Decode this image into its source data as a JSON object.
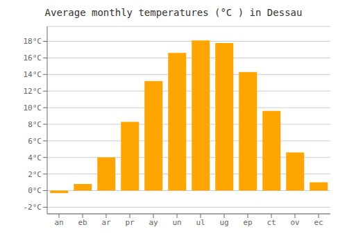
{
  "chart_data": {
    "type": "bar",
    "title": "Average monthly temperatures (°C ) in Dessau",
    "categories": [
      "an",
      "eb",
      "ar",
      "pr",
      "ay",
      "un",
      "ul",
      "ug",
      "ep",
      "ct",
      "ov",
      "ec"
    ],
    "values": [
      -0.3,
      0.8,
      4.0,
      8.3,
      13.2,
      16.6,
      18.1,
      17.8,
      14.3,
      9.6,
      4.6,
      1.0
    ],
    "color": "#FFA500",
    "ylim": [
      -2.8,
      19.8
    ],
    "yticks": [
      {
        "value": -2,
        "label": "-2°C"
      },
      {
        "value": 0,
        "label": "0°C"
      },
      {
        "value": 2,
        "label": "2°C"
      },
      {
        "value": 4,
        "label": "4°C"
      },
      {
        "value": 6,
        "label": "6°C"
      },
      {
        "value": 8,
        "label": "8°C"
      },
      {
        "value": 10,
        "label": "10°C"
      },
      {
        "value": 12,
        "label": "12°C"
      },
      {
        "value": 14,
        "label": "14°C"
      },
      {
        "value": 16,
        "label": "16°C"
      },
      {
        "value": 18,
        "label": "18°C"
      }
    ],
    "grid": true
  }
}
